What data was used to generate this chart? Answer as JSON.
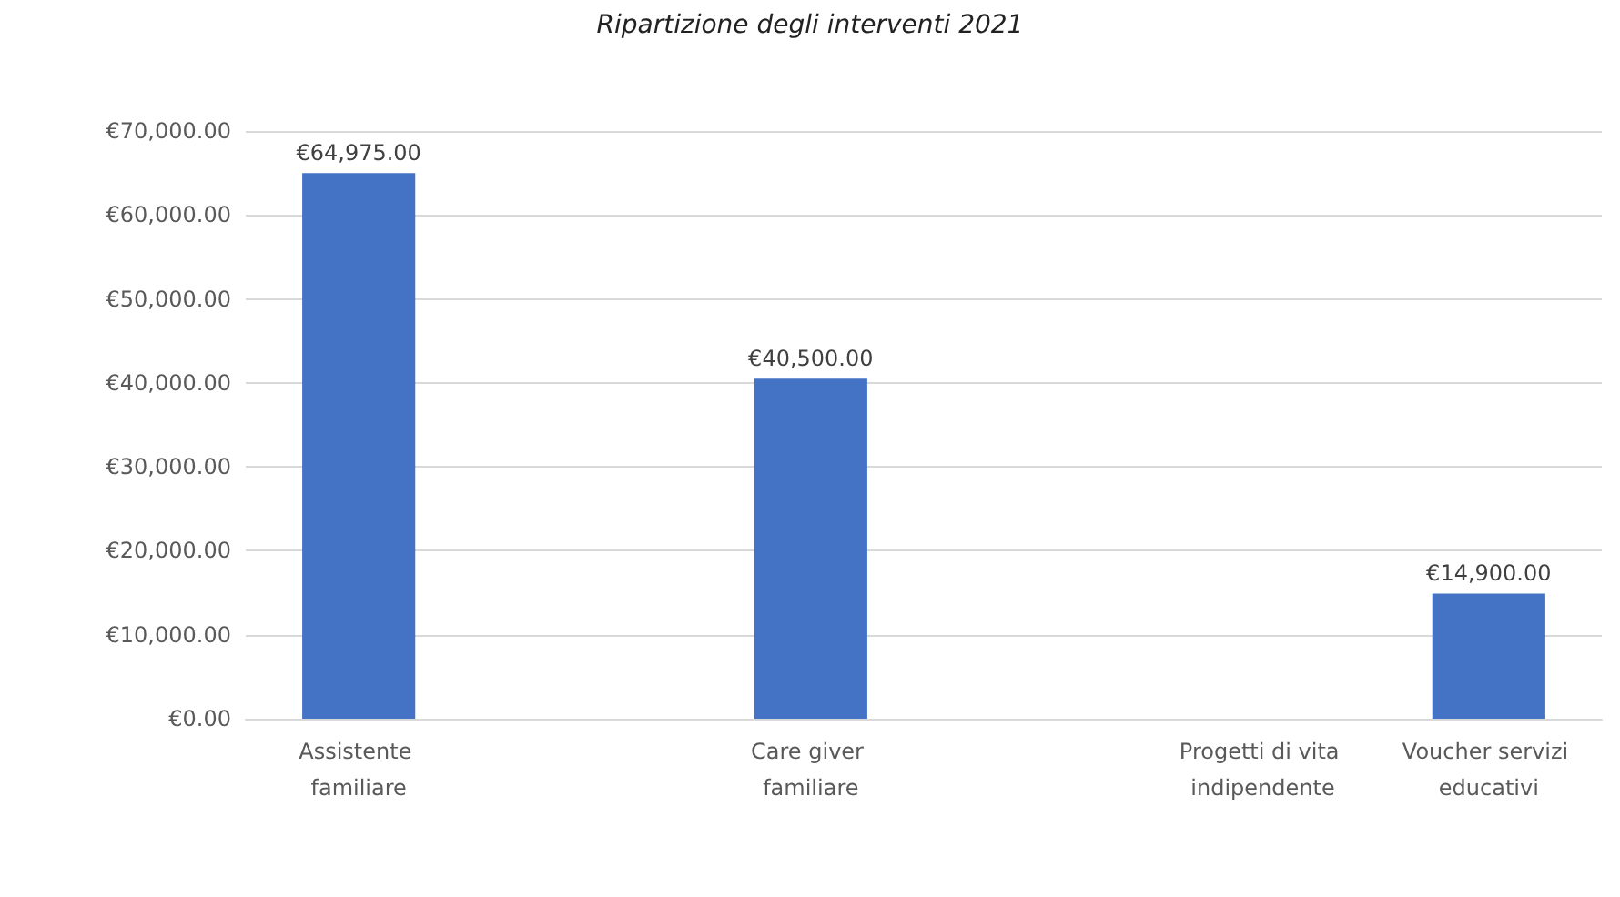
{
  "chart_data": {
    "type": "bar",
    "title": "Ripartizione degli interventi 2021",
    "categories": [
      "Assistente familiare",
      null,
      "Care giver familiare",
      null,
      "Progetti di vita indipendente",
      "Voucher servizi educativi"
    ],
    "values": [
      64975,
      null,
      40500,
      null,
      null,
      14900
    ],
    "value_labels": [
      "€64,975.00",
      null,
      "€40,500.00",
      null,
      null,
      "€14,900.00"
    ],
    "color": "#4472c4",
    "ylim": [
      0,
      70000
    ],
    "yticks": [
      {
        "value": 0,
        "label": "€0.00"
      },
      {
        "value": 10000,
        "label": "€10,000.00"
      },
      {
        "value": 20000,
        "label": "€20,000.00"
      },
      {
        "value": 30000,
        "label": "€30,000.00"
      },
      {
        "value": 40000,
        "label": "€40,000.00"
      },
      {
        "value": 50000,
        "label": "€50,000.00"
      },
      {
        "value": 60000,
        "label": "€60,000.00"
      },
      {
        "value": 70000,
        "label": "€70,000.00"
      }
    ],
    "grid": "y"
  }
}
